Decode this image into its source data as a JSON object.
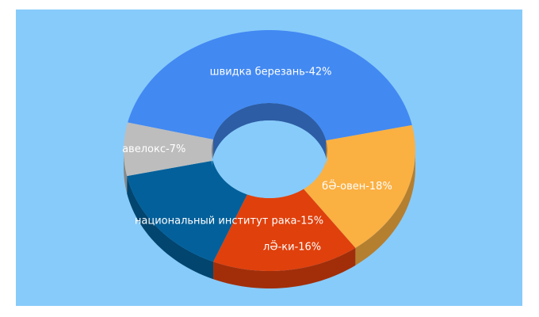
{
  "chart_data": {
    "type": "pie",
    "variant": "3d-donut",
    "legend": "none",
    "labels_on_slices": true,
    "background_color": "#87cbfa",
    "slices": [
      {
        "label": "швидка березань-42%",
        "value": 42,
        "color": "#4289f2"
      },
      {
        "label": "бӚ-овен-18%",
        "value": 18,
        "color": "#fbb042"
      },
      {
        "label": "лӚ-ки-16%",
        "value": 16,
        "color": "#e0400c"
      },
      {
        "label": "национальный институт рака-15%",
        "value": 15,
        "color": "#03609a"
      },
      {
        "label": "авелокс-7%",
        "value": 7,
        "color": "#bdbdbd"
      }
    ]
  }
}
